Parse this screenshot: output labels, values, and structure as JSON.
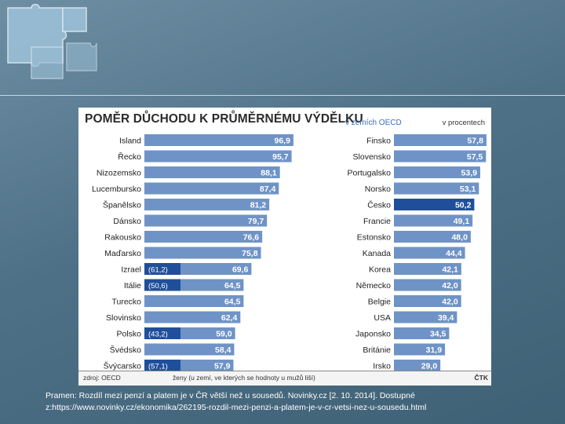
{
  "chart_data": {
    "type": "bar",
    "title": "POMĚR DŮCHODU K PRŮMĚRNÉMU VÝDĚLKU",
    "subtitle": "v zemích OECD",
    "unit": "v procentech",
    "highlight": "Česko",
    "highlight_color": "#1f4f9a",
    "bar_color": "#6f93c6",
    "women_color": "#1f4f9a",
    "left_series": {
      "categories": [
        "Island",
        "Řecko",
        "Nizozemsko",
        "Lucembursko",
        "Španělsko",
        "Dánsko",
        "Rakousko",
        "Maďarsko",
        "Izrael",
        "Itálie",
        "Turecko",
        "Slovinsko",
        "Polsko",
        "Švédsko",
        "Švýcarsko"
      ],
      "values": [
        96.9,
        95.7,
        88.1,
        87.4,
        81.2,
        79.7,
        76.6,
        75.8,
        69.6,
        64.5,
        64.5,
        62.4,
        59.0,
        58.4,
        57.9
      ],
      "labels": [
        "96,9",
        "95,7",
        "88,1",
        "87,4",
        "81,2",
        "79,7",
        "76,6",
        "75,8",
        "69,6",
        "64,5",
        "64,5",
        "62,4",
        "59,0",
        "58,4",
        "57,9"
      ]
    },
    "right_series": {
      "categories": [
        "Finsko",
        "Slovensko",
        "Portugalsko",
        "Norsko",
        "Česko",
        "Francie",
        "Estonsko",
        "Kanada",
        "Korea",
        "Německo",
        "Belgie",
        "USA",
        "Japonsko",
        "Británie",
        "Irsko"
      ],
      "values": [
        57.8,
        57.5,
        53.9,
        53.1,
        50.2,
        49.1,
        48.0,
        44.4,
        42.1,
        42.0,
        42.0,
        39.4,
        34.5,
        31.9,
        29.0
      ],
      "labels": [
        "57,8",
        "57,5",
        "53,9",
        "53,1",
        "50,2",
        "49,1",
        "48,0",
        "44,4",
        "42,1",
        "42,0",
        "42,0",
        "39,4",
        "34,5",
        "31,9",
        "29,0"
      ]
    },
    "women_values": [
      {
        "country": "Izrael",
        "label": "(61,2)"
      },
      {
        "country": "Itálie",
        "label": "(50,6)"
      },
      {
        "country": "Polsko",
        "label": "(43,2)"
      },
      {
        "country": "Švýcarsko",
        "label": "(57,1)"
      }
    ],
    "footer": {
      "source": "zdroj: OECD",
      "note": "ženy (u zemí, ve kterých se hodnoty u mužů liší)",
      "agency": "ČTK"
    }
  },
  "caption": {
    "line1": "Pramen: Rozdíl mezi penzí a platem je v ČR větší než u sousedů. Novinky.cz [2. 10. 2014]. Dostupné",
    "line2": "z:https://www.novinky.cz/ekonomika/262195-rozdil-mezi-penzi-a-platem-je-v-cr-vetsi-nez-u-sousedu.html"
  }
}
